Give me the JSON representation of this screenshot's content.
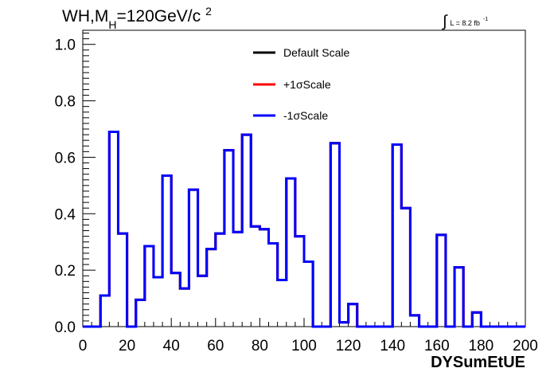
{
  "chart_data": {
    "type": "step-histogram",
    "title_parts": {
      "main": "WH,M",
      "sub": "H",
      "rest": "=120GeV/c",
      "sup": "2"
    },
    "lumi_parts": {
      "integral": "∫",
      "text": "L = 8.2 fb",
      "sup": "-1"
    },
    "xlabel": "DYSumEtUE",
    "ylabel": "",
    "xlim": [
      0,
      200
    ],
    "ylim": [
      0,
      1.05
    ],
    "xticks": [
      0,
      20,
      40,
      60,
      80,
      100,
      120,
      140,
      160,
      180,
      200
    ],
    "xtick_labels": [
      "0",
      "20",
      "40",
      "60",
      "80",
      "100",
      "120",
      "140",
      "160",
      "180",
      "200"
    ],
    "yticks": [
      0,
      0.2,
      0.4,
      0.6,
      0.8,
      1.0
    ],
    "ytick_labels": [
      "0.0",
      "0.2",
      "0.4",
      "0.6",
      "0.8",
      "1.0"
    ],
    "bin_edges": [
      0,
      4,
      8,
      12,
      16,
      20,
      24,
      28,
      32,
      36,
      40,
      44,
      48,
      52,
      56,
      60,
      64,
      68,
      72,
      76,
      80,
      84,
      88,
      92,
      96,
      100,
      104,
      108,
      112,
      116,
      120,
      124,
      128,
      132,
      136,
      140,
      144,
      148,
      152,
      156,
      160,
      164,
      168,
      172,
      176,
      180,
      184,
      188,
      192,
      196,
      200
    ],
    "series": [
      {
        "name": "Default Scale",
        "color": "#000000",
        "values": [
          0,
          0,
          0.11,
          0.69,
          0.33,
          0,
          0.095,
          0.285,
          0.175,
          0.535,
          0.19,
          0.135,
          0.485,
          0.18,
          0.275,
          0.33,
          0.625,
          0.335,
          0.68,
          0.355,
          0.345,
          0.295,
          0.165,
          0.525,
          0.32,
          0.23,
          0,
          0,
          0.65,
          0.015,
          0.08,
          0,
          0,
          0,
          0,
          0.645,
          0.42,
          0.04,
          0,
          0,
          0.325,
          0,
          0.21,
          0,
          0.05,
          0,
          0,
          0,
          0,
          0
        ]
      },
      {
        "name": "+1σScale",
        "color": "#ff0000",
        "values": [
          0,
          0,
          0.11,
          0.69,
          0.33,
          0,
          0.095,
          0.285,
          0.175,
          0.535,
          0.19,
          0.135,
          0.485,
          0.18,
          0.275,
          0.33,
          0.625,
          0.335,
          0.68,
          0.355,
          0.345,
          0.295,
          0.165,
          0.525,
          0.32,
          0.23,
          0,
          0,
          0.65,
          0.015,
          0.08,
          0,
          0,
          0,
          0,
          0.645,
          0.42,
          0.04,
          0,
          0,
          0.325,
          0,
          0.21,
          0,
          0.05,
          0,
          0,
          0,
          0,
          0
        ]
      },
      {
        "name": "-1σScale",
        "color": "#0000ff",
        "values": [
          0,
          0,
          0.11,
          0.69,
          0.33,
          0,
          0.095,
          0.285,
          0.175,
          0.535,
          0.19,
          0.135,
          0.485,
          0.18,
          0.275,
          0.33,
          0.625,
          0.335,
          0.68,
          0.355,
          0.345,
          0.295,
          0.165,
          0.525,
          0.32,
          0.23,
          0,
          0,
          0.65,
          0.015,
          0.08,
          0,
          0,
          0,
          0,
          0.645,
          0.42,
          0.04,
          0,
          0,
          0.325,
          0,
          0.21,
          0,
          0.05,
          0,
          0,
          0,
          0,
          0
        ]
      }
    ],
    "legend_position": "top-center",
    "grid": false
  }
}
